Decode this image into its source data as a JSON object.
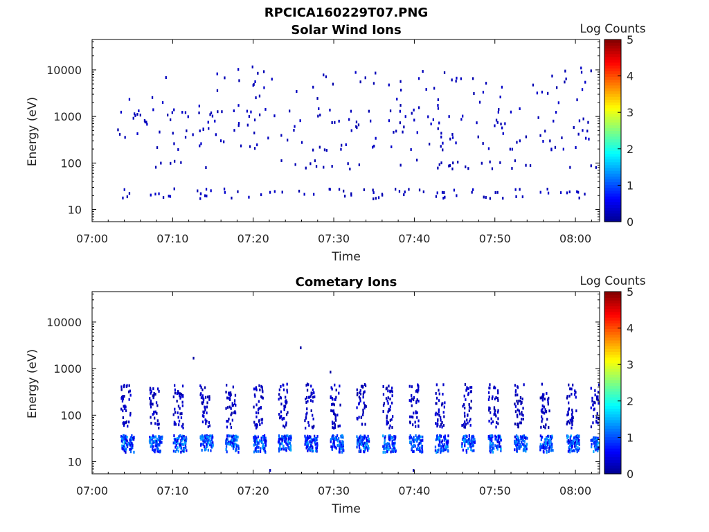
{
  "figure_title": "RPCICA160229T07.PNG",
  "colors": {
    "background": "#ffffff",
    "axes": "#000000",
    "colormap": [
      "#00008f",
      "#0000ff",
      "#0080ff",
      "#00ffff",
      "#80ff80",
      "#ffff00",
      "#ff8000",
      "#ff0000",
      "#800000"
    ]
  },
  "chart_data": [
    {
      "type": "heatmap",
      "title": "Solar Wind Ions",
      "xlabel": "Time",
      "ylabel": "Energy (eV)",
      "x_ticks": [
        "07:00",
        "07:10",
        "07:20",
        "07:30",
        "07:40",
        "07:50",
        "08:00"
      ],
      "x_range": [
        "07:00",
        "08:03"
      ],
      "y_scale": "log",
      "y_ticks": [
        10,
        100,
        1000,
        10000
      ],
      "y_range": [
        5.5,
        45000
      ],
      "colorbar": {
        "label": "Log Counts",
        "ticks": [
          0,
          1,
          2,
          3,
          4,
          5
        ],
        "range": [
          0,
          5
        ]
      },
      "bands": [
        {
          "energy_range": [
            15,
            35
          ],
          "log_counts": 0.3,
          "description": "sparse low-energy bursts"
        },
        {
          "energy_range": [
            200,
            1500
          ],
          "log_counts": 0.2,
          "description": "scattered mid-energy counts"
        },
        {
          "energy_range": [
            1000,
            20000
          ],
          "log_counts": 0.1,
          "description": "isolated high-energy counts"
        }
      ]
    },
    {
      "type": "heatmap",
      "title": "Cometary Ions",
      "xlabel": "Time",
      "ylabel": "Energy (eV)",
      "x_ticks": [
        "07:00",
        "07:10",
        "07:20",
        "07:30",
        "07:40",
        "07:50",
        "08:00"
      ],
      "x_range": [
        "07:00",
        "08:03"
      ],
      "y_scale": "log",
      "y_ticks": [
        10,
        100,
        1000,
        10000
      ],
      "y_range": [
        5.5,
        45000
      ],
      "colorbar": {
        "label": "Log Counts",
        "ticks": [
          0,
          1,
          2,
          3,
          4,
          5
        ],
        "range": [
          0,
          5
        ]
      },
      "bands": [
        {
          "energy_range": [
            15,
            40
          ],
          "log_counts": 1.0,
          "description": "periodic strong low-energy bursts"
        },
        {
          "energy_range": [
            60,
            500
          ],
          "log_counts": 0.3,
          "description": "vertical streaks each burst"
        }
      ],
      "burst_times_min": [
        4,
        7.5,
        10.5,
        13.8,
        17,
        20.4,
        23.5,
        26.8,
        30,
        33.2,
        36.5,
        39.8,
        43,
        46.3,
        49.6,
        52.8,
        56,
        59.3,
        62.3
      ]
    }
  ]
}
